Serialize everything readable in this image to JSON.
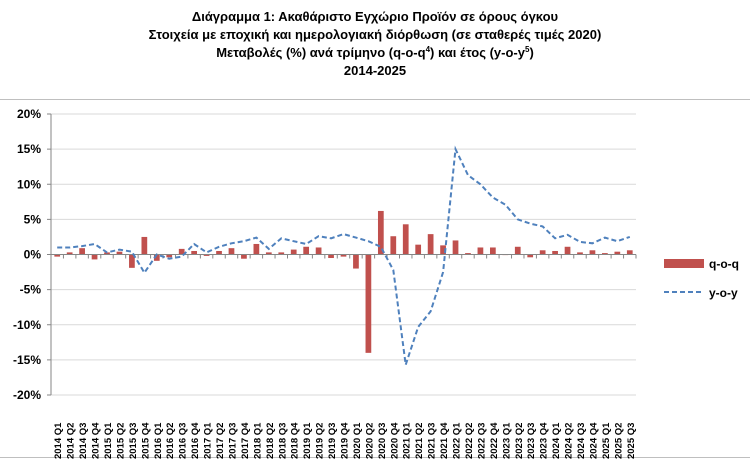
{
  "titles": {
    "line1": "Διάγραμμα 1: Ακαθάριστο Εγχώριο Προϊόν σε όρους όγκου",
    "line2": "Στοιχεία με εποχική και ημερολογιακή διόρθωση (σε σταθερές τιμές 2020)",
    "line3_a": "Μεταβολές (%) ανά τρίμηνο (q-o-q",
    "line3_sup1": "4",
    "line3_b": ") και έτος (y-o-y",
    "line3_sup2": "5",
    "line3_c": ")",
    "line4": "2014-2025"
  },
  "colors": {
    "bar": "#c0504d",
    "line": "#4f81bd",
    "axis": "#868686"
  },
  "chart_data": {
    "type": "bar",
    "categories": [
      "2014 Q1",
      "2014 Q2",
      "2014 Q3",
      "2014 Q4",
      "2015 Q1",
      "2015 Q2",
      "2015 Q3",
      "2015 Q4",
      "2016 Q1",
      "2016 Q2",
      "2016 Q3",
      "2016 Q4",
      "2017 Q1",
      "2017 Q2",
      "2017 Q3",
      "2017 Q4",
      "2018 Q1",
      "2018 Q2",
      "2018 Q3",
      "2018 Q4",
      "2019 Q1",
      "2019 Q2",
      "2019 Q3",
      "2019 Q4",
      "2020 Q1",
      "2020 Q2",
      "2020 Q3",
      "2020 Q4",
      "2021 Q1",
      "2021 Q2",
      "2021 Q3",
      "2021 Q4",
      "2022 Q1",
      "2022 Q2",
      "2022 Q3",
      "2022 Q4",
      "2023 Q1",
      "2023 Q2",
      "2023 Q3",
      "2023 Q4",
      "2024 Q1",
      "2024 Q2",
      "2024 Q3",
      "2024 Q4",
      "2025 Q1",
      "2025 Q2",
      "2025 Q3"
    ],
    "series": [
      {
        "name": "q-o-q",
        "type": "bar",
        "values": [
          -0.3,
          0.3,
          0.9,
          -0.7,
          0.3,
          0.4,
          -1.9,
          2.5,
          -0.9,
          -0.4,
          0.8,
          0.5,
          -0.2,
          0.5,
          0.9,
          -0.6,
          1.5,
          0.3,
          0.3,
          0.7,
          1.1,
          1.0,
          -0.5,
          -0.3,
          -2.0,
          -14.0,
          6.2,
          2.6,
          4.3,
          1.4,
          2.9,
          1.3,
          2.0,
          0.2,
          1.0,
          1.0,
          0.0,
          1.1,
          -0.4,
          0.6,
          0.5,
          1.1,
          0.3,
          0.6,
          0.2,
          0.4,
          0.6
        ]
      },
      {
        "name": "y-o-y",
        "type": "line",
        "values": [
          1.0,
          1.0,
          1.2,
          1.5,
          0.3,
          0.7,
          0.4,
          -2.6,
          0.0,
          -0.6,
          -0.3,
          1.5,
          0.3,
          1.1,
          1.6,
          1.9,
          2.4,
          0.8,
          2.3,
          1.9,
          1.5,
          2.6,
          2.3,
          2.9,
          2.4,
          1.9,
          1.1,
          -2.2,
          -15.7,
          -10.3,
          -8.1,
          -2.5,
          15.0,
          11.3,
          10.0,
          8.1,
          7.1,
          5.0,
          4.4,
          4.0,
          2.3,
          2.8,
          1.8,
          1.6,
          2.4,
          1.9,
          2.5
        ]
      }
    ],
    "yTicks": [
      "20%",
      "15%",
      "10%",
      "5%",
      "0%",
      "-5%",
      "-10%",
      "-15%",
      "-20%"
    ],
    "ylim": [
      -20,
      20
    ],
    "grid": true,
    "legend": "right"
  }
}
